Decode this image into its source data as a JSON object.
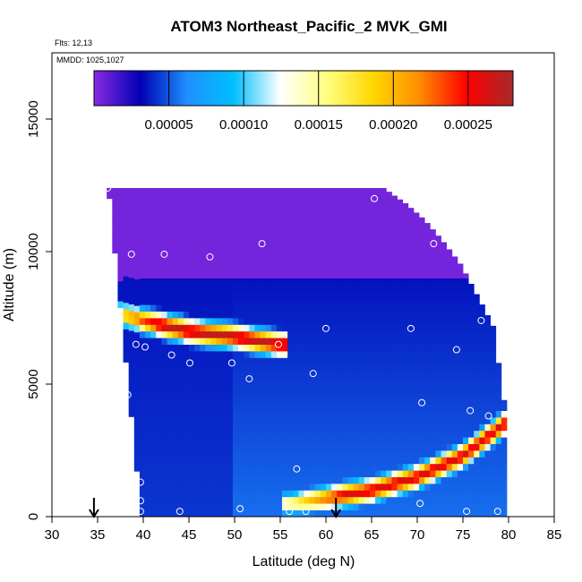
{
  "chart_data": {
    "type": "heatmap",
    "title": "ATOM3 Northeast_Pacific_2 MVK_GMI",
    "flights_label": "Flts: 12,13",
    "dates_label": "MMDD: 1025,1027",
    "xlabel": "Latitude (deg N)",
    "ylabel": "Altitude (m)",
    "xlim": [
      30,
      85
    ],
    "ylim": [
      0,
      17500
    ],
    "x_ticks": [
      "30",
      "35",
      "40",
      "45",
      "50",
      "55",
      "60",
      "65",
      "70",
      "75",
      "80",
      "85"
    ],
    "y_ticks": [
      "0",
      "5000",
      "10000",
      "15000"
    ],
    "colorbar": {
      "min": 0.0,
      "max": 0.00028,
      "tick_labels": [
        "0.00005",
        "0.00010",
        "0.00015",
        "0.00020",
        "0.00025"
      ],
      "tick_values": [
        5e-05,
        0.0001,
        0.00015,
        0.0002,
        0.00025
      ],
      "colors": [
        "#8a2be2",
        "#0000b4",
        "#1e90ff",
        "#00bfff",
        "#ffffff",
        "#ffff80",
        "#ffd700",
        "#ff8c00",
        "#ff0000",
        "#a52a2a"
      ]
    },
    "curtain_profile_lat": [
      36.0,
      39.5,
      41.5,
      44.0,
      47.0,
      50.0,
      53.0,
      56.5,
      60.0,
      63.5,
      66.0,
      68.5,
      70.5,
      72.5,
      74.5,
      76.5,
      78.0,
      79.5
    ],
    "curtain_top_alt": [
      12400,
      12400,
      12400,
      12400,
      12400,
      12400,
      12400,
      12400,
      12400,
      12400,
      12400,
      11800,
      11200,
      10400,
      9500,
      8200,
      7200,
      3700
    ],
    "curtain_bottom_alt": [
      12000,
      0,
      0,
      0,
      0,
      0,
      0,
      0,
      0,
      0,
      0,
      0,
      0,
      0,
      0,
      0,
      0,
      0
    ],
    "band_features": [
      {
        "lat": [
          36.0,
          40.0,
          45.0,
          50.0,
          55.0
        ],
        "alt": [
          7800,
          7400,
          7000,
          6800,
          6500
        ],
        "peak": 0.00027
      },
      {
        "lat": [
          56.0,
          60.0,
          65.0,
          70.0,
          75.0,
          79.5
        ],
        "alt": [
          500,
          700,
          1000,
          1500,
          2300,
          3500
        ],
        "peak": 0.00026
      }
    ],
    "flight_points": [
      {
        "lat": 36.1,
        "alt": 12400
      },
      {
        "lat": 65.3,
        "alt": 12000
      },
      {
        "lat": 38.7,
        "alt": 9900
      },
      {
        "lat": 42.3,
        "alt": 9900
      },
      {
        "lat": 47.3,
        "alt": 9800
      },
      {
        "lat": 53.0,
        "alt": 10300
      },
      {
        "lat": 71.8,
        "alt": 10300
      },
      {
        "lat": 37.2,
        "alt": 7200
      },
      {
        "lat": 60.0,
        "alt": 7100
      },
      {
        "lat": 69.3,
        "alt": 7100
      },
      {
        "lat": 77.0,
        "alt": 7400
      },
      {
        "lat": 39.2,
        "alt": 6500
      },
      {
        "lat": 40.2,
        "alt": 6400
      },
      {
        "lat": 43.1,
        "alt": 6100
      },
      {
        "lat": 45.1,
        "alt": 5800
      },
      {
        "lat": 49.7,
        "alt": 5800
      },
      {
        "lat": 51.6,
        "alt": 5200
      },
      {
        "lat": 54.8,
        "alt": 6500
      },
      {
        "lat": 58.6,
        "alt": 5400
      },
      {
        "lat": 74.3,
        "alt": 6300
      },
      {
        "lat": 38.3,
        "alt": 4600
      },
      {
        "lat": 70.5,
        "alt": 4300
      },
      {
        "lat": 75.8,
        "alt": 4000
      },
      {
        "lat": 77.8,
        "alt": 3800
      },
      {
        "lat": 56.8,
        "alt": 1800
      },
      {
        "lat": 39.7,
        "alt": 1300
      },
      {
        "lat": 39.7,
        "alt": 600
      },
      {
        "lat": 39.7,
        "alt": 200
      },
      {
        "lat": 44.0,
        "alt": 200
      },
      {
        "lat": 50.6,
        "alt": 300
      },
      {
        "lat": 56.0,
        "alt": 200
      },
      {
        "lat": 57.8,
        "alt": 200
      },
      {
        "lat": 70.3,
        "alt": 500
      },
      {
        "lat": 75.4,
        "alt": 200
      },
      {
        "lat": 78.8,
        "alt": 200
      }
    ],
    "markers": [
      {
        "type": "arrow-down",
        "lat": 34.6
      },
      {
        "type": "arrow-down",
        "lat": 61.1
      }
    ]
  }
}
